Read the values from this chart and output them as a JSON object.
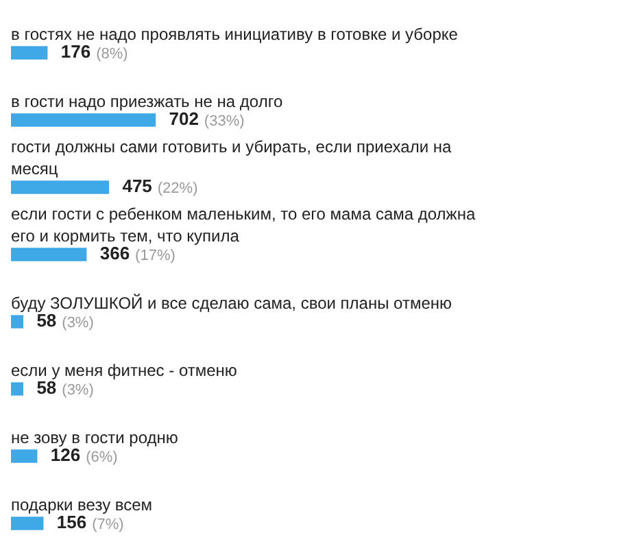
{
  "chart_data": {
    "type": "bar",
    "orientation": "horizontal",
    "categories": [
      "в гостях не надо проявлять инициативу в готовке и уборке",
      "в гости надо приезжать не на долго",
      "гости должны сами готовить и убирать, если приехали на месяц",
      "если гости с ребенком маленьким, то его мама сама должна его и кормить тем, что купила",
      "буду ЗОЛУШКОЙ и все сделаю сама, свои планы отменю",
      "если у меня фитнес - отменю",
      "не зову в гости родню",
      "подарки везу всем"
    ],
    "values": [
      176,
      702,
      475,
      366,
      58,
      58,
      126,
      156
    ],
    "value_labels": [
      "176 (8%)",
      "702 (33%)",
      "475 (22%)",
      "366 (17%)",
      "58 (3%)",
      "58 (3%)",
      "126 (6%)",
      "156 (7%)"
    ],
    "color": "#3fa9e8",
    "tick_labels": false
  }
}
